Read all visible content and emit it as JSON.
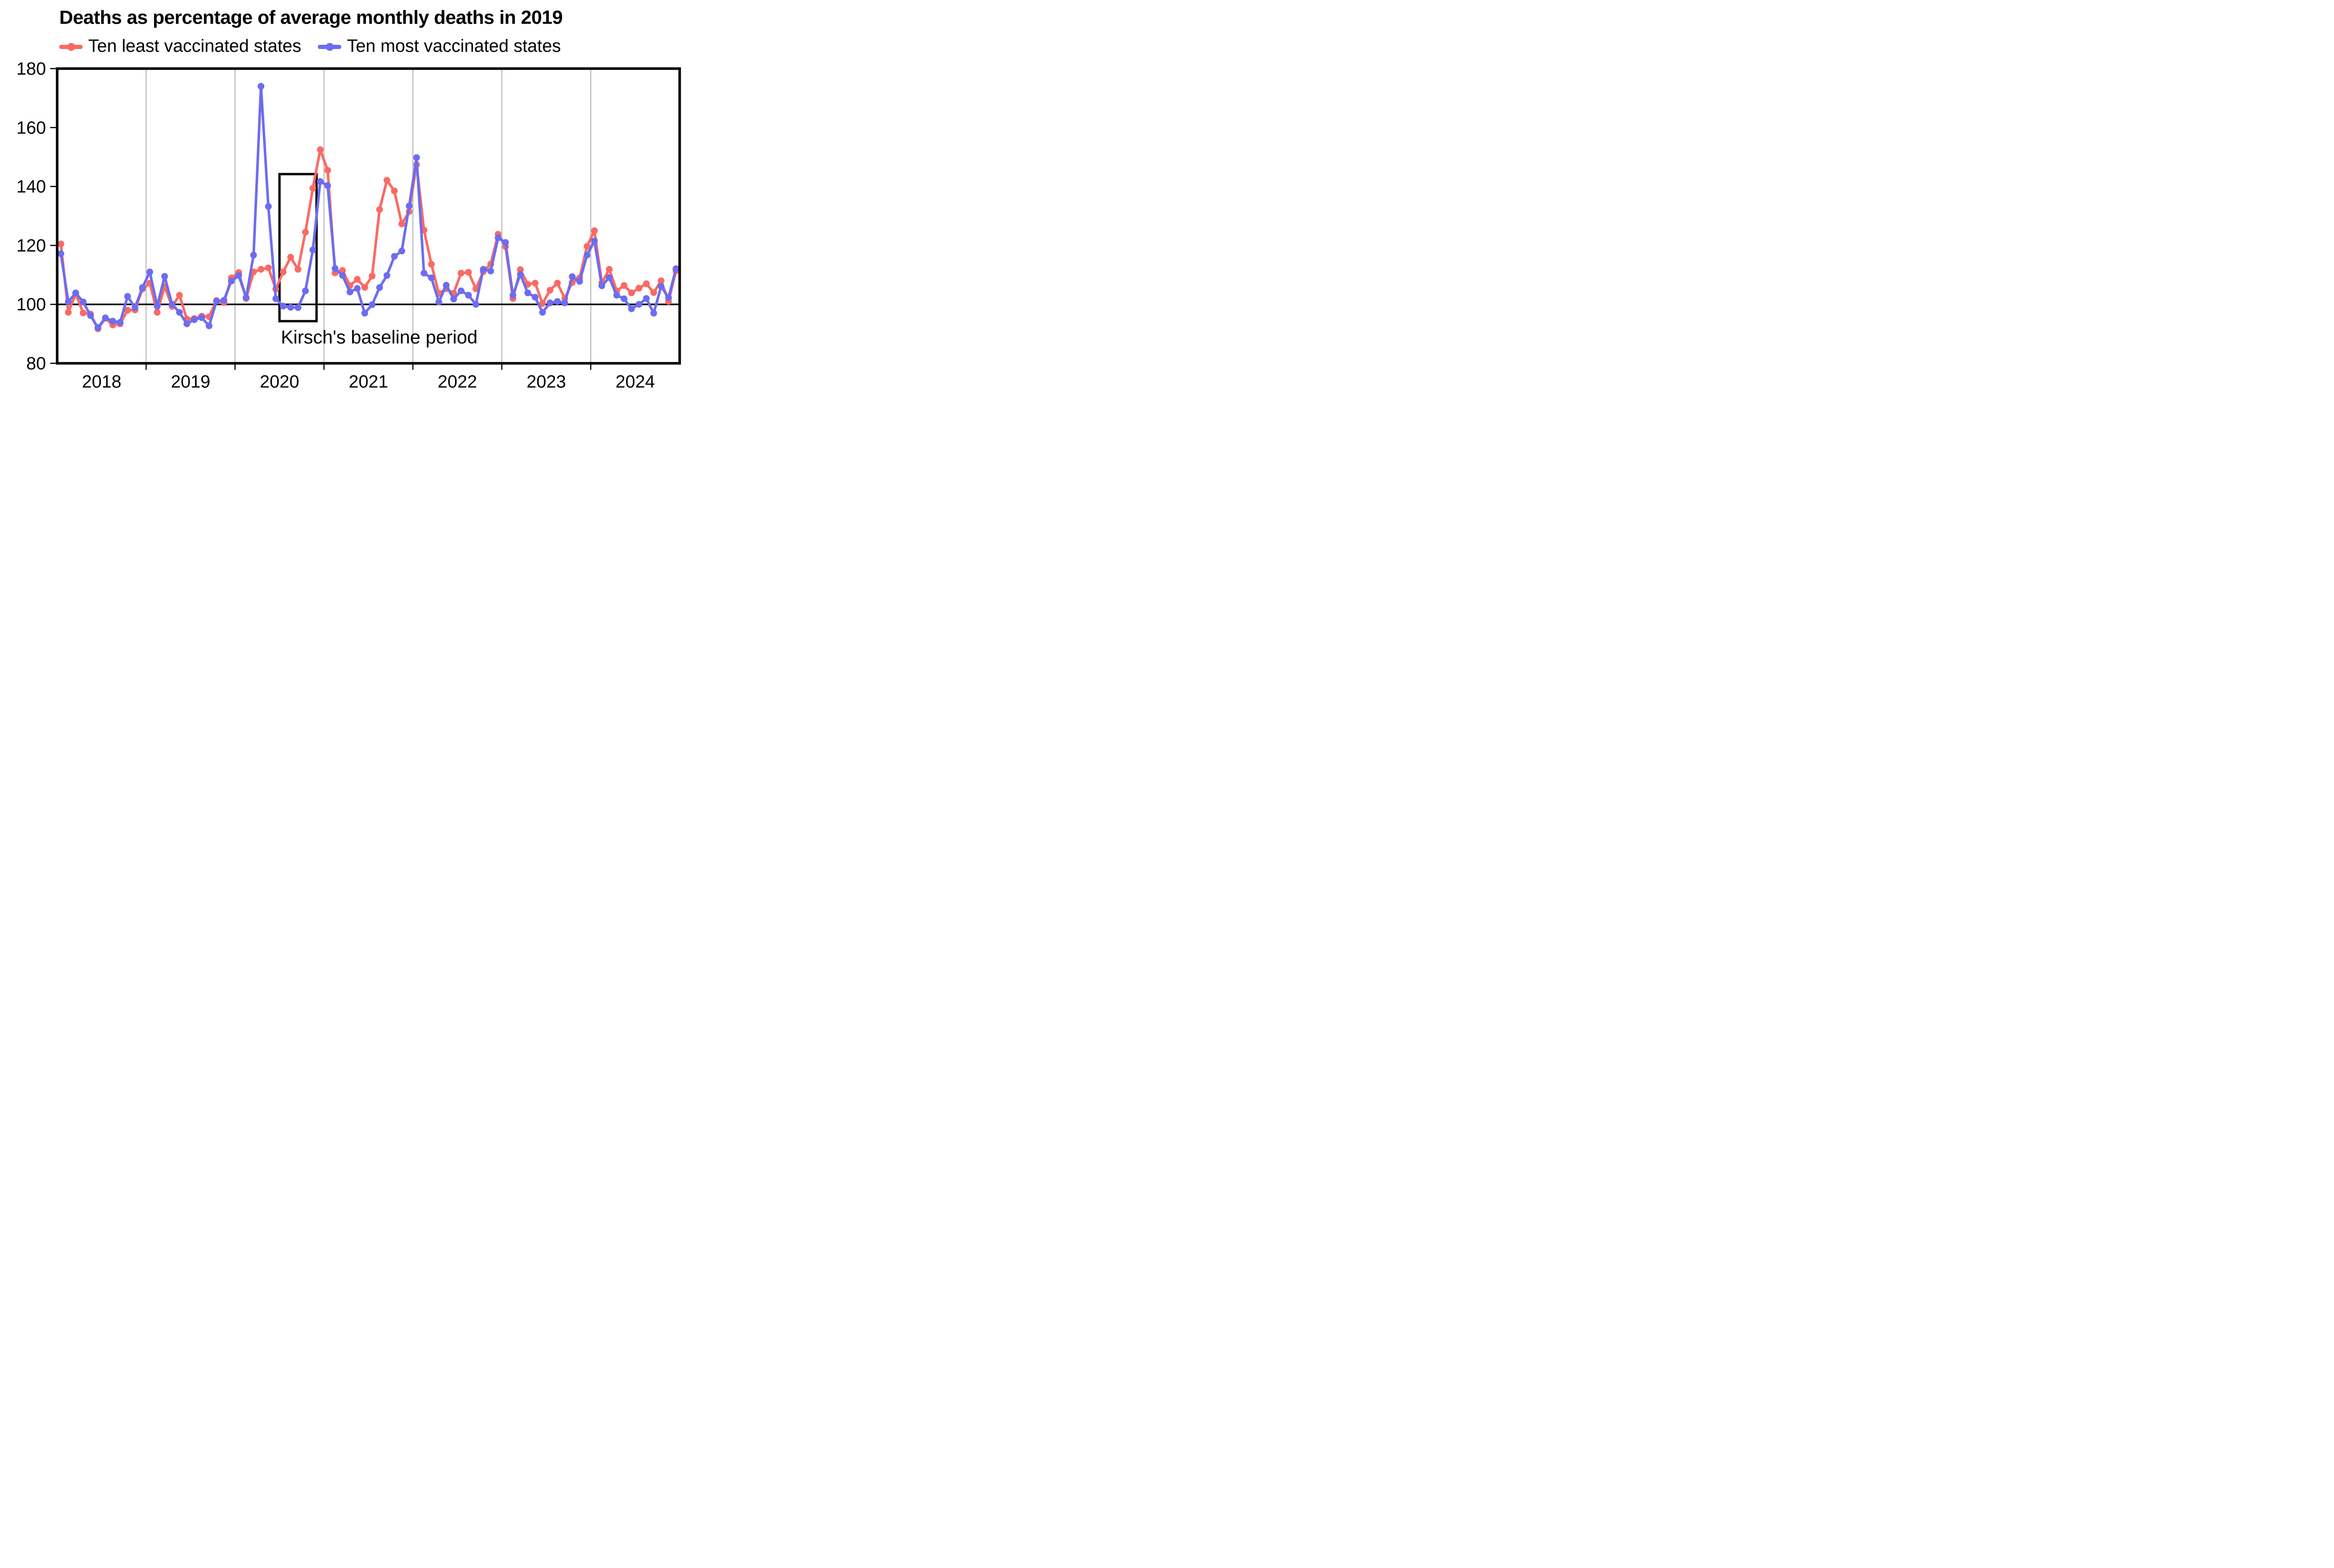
{
  "title": "Deaths as percentage of average monthly deaths in 2019",
  "legend": [
    {
      "label": "Ten least vaccinated states",
      "color": "#FA6A63"
    },
    {
      "label": "Ten most vaccinated states",
      "color": "#6D6CF0"
    }
  ],
  "annotation": {
    "label": "Kirsch's baseline period"
  },
  "chart_data": {
    "type": "line",
    "x_start": "2018-01",
    "x_step": "1 month",
    "n_points": 84,
    "x_tick_labels": [
      "2018",
      "2019",
      "2020",
      "2021",
      "2022",
      "2023",
      "2024"
    ],
    "y_ticks": [
      80,
      100,
      120,
      140,
      160,
      180
    ],
    "ylim": [
      80,
      180
    ],
    "baseline_value": 100,
    "grid": "vertical gray line at each January",
    "legend_position": "top",
    "colors": {
      "grid": "#C9C9C9",
      "axis": "#000000",
      "baseline": "#000000"
    },
    "annotation_box": {
      "x_from": "2020-07",
      "x_to": "2020-12",
      "y_from": 94.3,
      "y_to": 144.2,
      "label": "Kirsch's baseline period"
    },
    "series": [
      {
        "name": "Ten least vaccinated states",
        "color": "#FA6A63",
        "values": [
          120.5,
          97.3,
          103.6,
          97.1,
          96.7,
          91.7,
          95.3,
          93.0,
          93.4,
          98.0,
          98.1,
          105.2,
          107.2,
          97.3,
          106.0,
          99.3,
          103.1,
          95.0,
          95.2,
          96.0,
          95.8,
          101.3,
          100.6,
          109.0,
          110.8,
          102.0,
          111.0,
          111.9,
          112.4,
          105.2,
          111.0,
          116.0,
          111.9,
          124.5,
          139.4,
          152.5,
          145.5,
          110.7,
          111.5,
          106.4,
          108.5,
          105.8,
          109.6,
          132.2,
          142.1,
          138.5,
          127.3,
          131.5,
          147.4,
          125.2,
          113.6,
          103.7,
          105.3,
          103.8,
          110.6,
          110.9,
          105.3,
          111.1,
          113.7,
          123.8,
          119.6,
          102.0,
          111.8,
          106.8,
          107.2,
          100.3,
          104.8,
          107.2,
          102.0,
          107.4,
          109.0,
          119.7,
          125.0,
          107.3,
          111.9,
          104.6,
          106.4,
          103.9,
          105.5,
          107.0,
          104.0,
          108.0,
          101.0,
          111.4
        ]
      },
      {
        "name": "Ten most vaccinated states",
        "color": "#6D6CF0",
        "values": [
          117.2,
          100.9,
          103.9,
          100.8,
          96.2,
          92.1,
          95.4,
          94.3,
          93.9,
          102.7,
          98.9,
          105.7,
          111.0,
          99.4,
          109.5,
          100.0,
          97.3,
          93.4,
          94.8,
          95.5,
          92.7,
          101.1,
          101.4,
          107.9,
          109.8,
          102.3,
          116.7,
          174.0,
          133.2,
          101.9,
          99.4,
          99.0,
          98.9,
          104.6,
          118.5,
          141.7,
          140.3,
          112.2,
          109.8,
          104.2,
          105.4,
          97.0,
          99.9,
          105.7,
          109.8,
          116.3,
          118.1,
          133.4,
          149.8,
          110.6,
          109.0,
          100.8,
          106.5,
          101.8,
          104.6,
          103.1,
          100.0,
          111.9,
          111.3,
          122.6,
          121.0,
          103.1,
          110.2,
          103.9,
          102.4,
          97.3,
          100.5,
          101.0,
          100.5,
          109.4,
          107.8,
          116.7,
          121.5,
          106.3,
          109.1,
          103.1,
          101.9,
          98.5,
          100.0,
          102.0,
          97.0,
          106.1,
          102.3,
          112.1
        ]
      }
    ]
  }
}
